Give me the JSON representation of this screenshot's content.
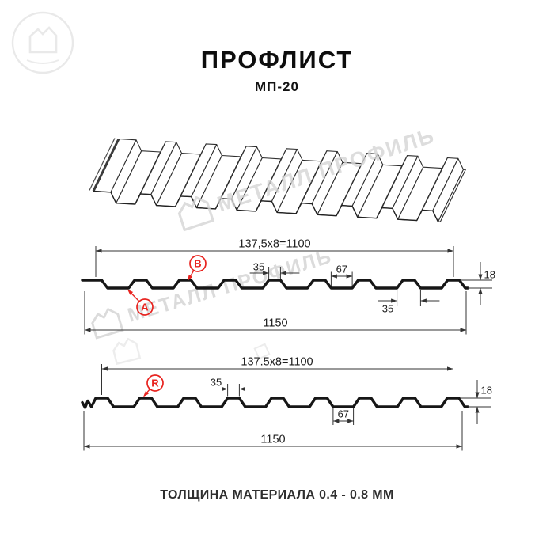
{
  "title": "ПРОФЛИСТ",
  "subtitle": "МП-20",
  "footer": "ТОЛЩИНА МАТЕРИАЛА 0.4 - 0.8 ММ",
  "watermark": {
    "brand": "МЕТАЛЛ ПРОФИЛЬ"
  },
  "colors": {
    "ink": "#161616",
    "dim": "#333333",
    "red": "#e8231f",
    "watermark": "#d5d5d5"
  },
  "drawing_top": {
    "dims": {
      "coverage": "137,5x8=1100",
      "rib_top": "35",
      "flat": "67",
      "height": "18",
      "rib_bottom": "35",
      "total": "1150"
    },
    "labels": {
      "a": "А",
      "b": "В"
    }
  },
  "drawing_bottom": {
    "dims": {
      "coverage": "137.5x8=1100",
      "rib_top": "35",
      "height": "18",
      "flat": "67",
      "total": "1150"
    },
    "labels": {
      "r": "R"
    }
  }
}
